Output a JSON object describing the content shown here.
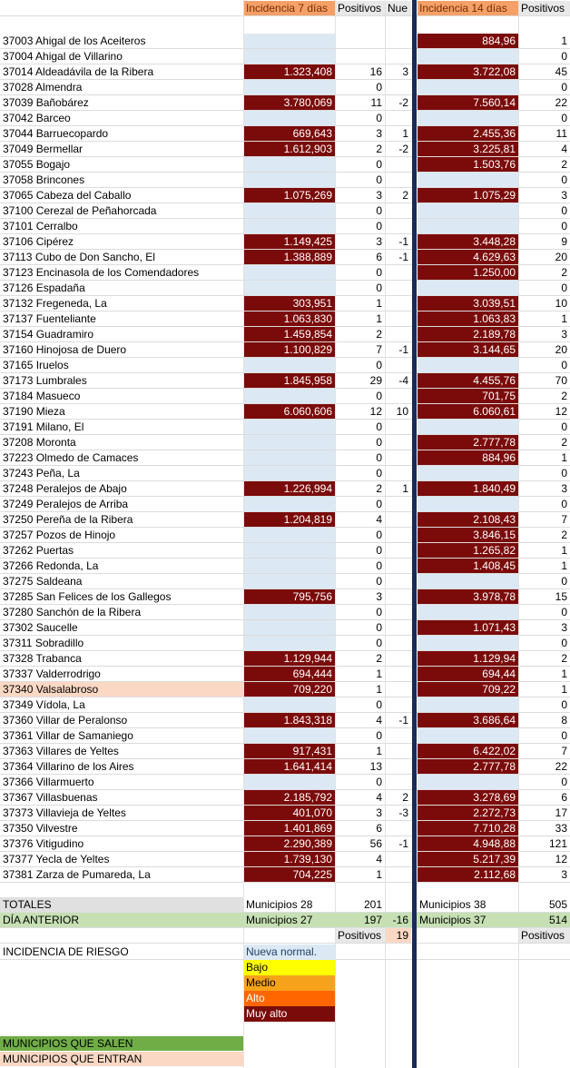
{
  "headers": {
    "inc7": "Incidencia 7 días",
    "pos7": "Positivos",
    "nuevos": "Nue",
    "inc14": "Incidencia 14 días",
    "pos14": "Positivos"
  },
  "rows": [
    {
      "name": "37003 Ahigal de los Aceiteros",
      "i7": "",
      "p7": "",
      "n": "",
      "i14": "884,96",
      "p14": "1"
    },
    {
      "name": "37004 Ahigal de Villarino",
      "i7": "",
      "p7": "",
      "n": "",
      "i14": "",
      "p14": "0"
    },
    {
      "name": "37014 Aldeadávila de la Ribera",
      "i7": "1.323,408",
      "p7": "16",
      "n": "3",
      "i14": "3.722,08",
      "p14": "45"
    },
    {
      "name": "37028 Almendra",
      "i7": "",
      "p7": "0",
      "n": "",
      "i14": "",
      "p14": "0"
    },
    {
      "name": "37039 Bañobárez",
      "i7": "3.780,069",
      "p7": "11",
      "n": "-2",
      "i14": "7.560,14",
      "p14": "22"
    },
    {
      "name": "37042 Barceo",
      "i7": "",
      "p7": "0",
      "n": "",
      "i14": "",
      "p14": "0"
    },
    {
      "name": "37044 Barruecopardo",
      "i7": "669,643",
      "p7": "3",
      "n": "1",
      "i14": "2.455,36",
      "p14": "11"
    },
    {
      "name": "37049 Bermellar",
      "i7": "1.612,903",
      "p7": "2",
      "n": "-2",
      "i14": "3.225,81",
      "p14": "4"
    },
    {
      "name": "37055 Bogajo",
      "i7": "",
      "p7": "0",
      "n": "",
      "i14": "1.503,76",
      "p14": "2"
    },
    {
      "name": "37058 Brincones",
      "i7": "",
      "p7": "0",
      "n": "",
      "i14": "",
      "p14": "0"
    },
    {
      "name": "37065 Cabeza del Caballo",
      "i7": "1.075,269",
      "p7": "3",
      "n": "2",
      "i14": "1.075,29",
      "p14": "3"
    },
    {
      "name": "37100 Cerezal de Peñahorcada",
      "i7": "",
      "p7": "0",
      "n": "",
      "i14": "",
      "p14": "0"
    },
    {
      "name": "37101 Cerralbo",
      "i7": "",
      "p7": "0",
      "n": "",
      "i14": "",
      "p14": "0"
    },
    {
      "name": "37106 Cipérez",
      "i7": "1.149,425",
      "p7": "3",
      "n": "-1",
      "i14": "3.448,28",
      "p14": "9"
    },
    {
      "name": "37113 Cubo de Don Sancho, El",
      "i7": "1.388,889",
      "p7": "6",
      "n": "-1",
      "i14": "4.629,63",
      "p14": "20"
    },
    {
      "name": "37123 Encinasola de los Comendadores",
      "i7": "",
      "p7": "0",
      "n": "",
      "i14": "1.250,00",
      "p14": "2"
    },
    {
      "name": "37126 Espadaña",
      "i7": "",
      "p7": "0",
      "n": "",
      "i14": "",
      "p14": "0"
    },
    {
      "name": "37132 Fregeneda, La",
      "i7": "303,951",
      "p7": "1",
      "n": "",
      "i14": "3.039,51",
      "p14": "10"
    },
    {
      "name": "37137 Fuenteliante",
      "i7": "1.063,830",
      "p7": "1",
      "n": "",
      "i14": "1.063,83",
      "p14": "1"
    },
    {
      "name": "37154 Guadramiro",
      "i7": "1.459,854",
      "p7": "2",
      "n": "",
      "i14": "2.189,78",
      "p14": "3"
    },
    {
      "name": "37160 Hinojosa de Duero",
      "i7": "1.100,829",
      "p7": "7",
      "n": "-1",
      "i14": "3.144,65",
      "p14": "20"
    },
    {
      "name": "37165 Iruelos",
      "i7": "",
      "p7": "0",
      "n": "",
      "i14": "",
      "p14": "0"
    },
    {
      "name": "37173 Lumbrales",
      "i7": "1.845,958",
      "p7": "29",
      "n": "-4",
      "i14": "4.455,76",
      "p14": "70"
    },
    {
      "name": "37184 Masueco",
      "i7": "",
      "p7": "0",
      "n": "",
      "i14": "701,75",
      "p14": "2"
    },
    {
      "name": "37190 Mieza",
      "i7": "6.060,606",
      "p7": "12",
      "n": "10",
      "i14": "6.060,61",
      "p14": "12"
    },
    {
      "name": "37191 Milano, El",
      "i7": "",
      "p7": "0",
      "n": "",
      "i14": "",
      "p14": "0"
    },
    {
      "name": "37208 Moronta",
      "i7": "",
      "p7": "0",
      "n": "",
      "i14": "2.777,78",
      "p14": "2"
    },
    {
      "name": "37223 Olmedo de Camaces",
      "i7": "",
      "p7": "0",
      "n": "",
      "i14": "884,96",
      "p14": "1"
    },
    {
      "name": "37243 Peña, La",
      "i7": "",
      "p7": "0",
      "n": "",
      "i14": "",
      "p14": "0"
    },
    {
      "name": "37248 Peralejos de Abajo",
      "i7": "1.226,994",
      "p7": "2",
      "n": "1",
      "i14": "1.840,49",
      "p14": "3"
    },
    {
      "name": "37249 Peralejos de Arriba",
      "i7": "",
      "p7": "0",
      "n": "",
      "i14": "",
      "p14": "0"
    },
    {
      "name": "37250 Pereña de la Ribera",
      "i7": "1.204,819",
      "p7": "4",
      "n": "",
      "i14": "2.108,43",
      "p14": "7"
    },
    {
      "name": "37257 Pozos de Hinojo",
      "i7": "",
      "p7": "0",
      "n": "",
      "i14": "3.846,15",
      "p14": "2"
    },
    {
      "name": "37262 Puertas",
      "i7": "",
      "p7": "0",
      "n": "",
      "i14": "1.265,82",
      "p14": "1"
    },
    {
      "name": "37266 Redonda, La",
      "i7": "",
      "p7": "0",
      "n": "",
      "i14": "1.408,45",
      "p14": "1"
    },
    {
      "name": "37275 Saldeana",
      "i7": "",
      "p7": "0",
      "n": "",
      "i14": "",
      "p14": "0"
    },
    {
      "name": "37285 San Felices de los Gallegos",
      "i7": "795,756",
      "p7": "3",
      "n": "",
      "i14": "3.978,78",
      "p14": "15"
    },
    {
      "name": "37280 Sanchón de la Ribera",
      "i7": "",
      "p7": "0",
      "n": "",
      "i14": "",
      "p14": "0"
    },
    {
      "name": "37302 Saucelle",
      "i7": "",
      "p7": "0",
      "n": "",
      "i14": "1.071,43",
      "p14": "3"
    },
    {
      "name": "37311 Sobradillo",
      "i7": "",
      "p7": "0",
      "n": "",
      "i14": "",
      "p14": "0"
    },
    {
      "name": "37328 Trabanca",
      "i7": "1.129,944",
      "p7": "2",
      "n": "",
      "i14": "1.129,94",
      "p14": "2"
    },
    {
      "name": "37337 Valderrodrigo",
      "i7": "694,444",
      "p7": "1",
      "n": "",
      "i14": "694,44",
      "p14": "1"
    },
    {
      "name": "37340 Valsalabroso",
      "i7": "709,220",
      "p7": "1",
      "n": "",
      "i14": "709,22",
      "p14": "1",
      "entering": true
    },
    {
      "name": "37349 Vídola, La",
      "i7": "",
      "p7": "0",
      "n": "",
      "i14": "",
      "p14": "0"
    },
    {
      "name": "37360 Villar de Peralonso",
      "i7": "1.843,318",
      "p7": "4",
      "n": "-1",
      "i14": "3.686,64",
      "p14": "8"
    },
    {
      "name": "37361 Villar de Samaniego",
      "i7": "",
      "p7": "0",
      "n": "",
      "i14": "",
      "p14": "0"
    },
    {
      "name": "37363 Villares de Yeltes",
      "i7": "917,431",
      "p7": "1",
      "n": "",
      "i14": "6.422,02",
      "p14": "7"
    },
    {
      "name": "37364 Villarino de los Aires",
      "i7": "1.641,414",
      "p7": "13",
      "n": "",
      "i14": "2.777,78",
      "p14": "22"
    },
    {
      "name": "37366 Villarmuerto",
      "i7": "",
      "p7": "0",
      "n": "",
      "i14": "",
      "p14": "0"
    },
    {
      "name": "37367 Villasbuenas",
      "i7": "2.185,792",
      "p7": "4",
      "n": "2",
      "i14": "3.278,69",
      "p14": "6"
    },
    {
      "name": "37373 Villavieja de Yeltes",
      "i7": "401,070",
      "p7": "3",
      "n": "-3",
      "i14": "2.272,73",
      "p14": "17"
    },
    {
      "name": "37350 Vilvestre",
      "i7": "1.401,869",
      "p7": "6",
      "n": "",
      "i14": "7.710,28",
      "p14": "33"
    },
    {
      "name": "37376 Vitigudino",
      "i7": "2.290,389",
      "p7": "56",
      "n": "-1",
      "i14": "4.948,88",
      "p14": "121"
    },
    {
      "name": "37377 Yecla de Yeltes",
      "i7": "1.739,130",
      "p7": "4",
      "n": "",
      "i14": "5.217,39",
      "p14": "12"
    },
    {
      "name": "37381 Zarza de Pumareda, La",
      "i7": "704,225",
      "p7": "1",
      "n": "",
      "i14": "2.112,68",
      "p14": "3"
    }
  ],
  "totals": {
    "label": "TOTALES",
    "mun7": "Municipios 28",
    "pos7": "201",
    "mun14": "Municipios 38",
    "pos14": "505"
  },
  "previous": {
    "label": "DÍA ANTERIOR",
    "mun7": "Municipios 27",
    "pos7": "197",
    "diff": "-16",
    "mun14": "Municipios 37",
    "pos14": "514"
  },
  "sub": {
    "pos7": "Positivos",
    "val": "19",
    "pos14": "Positivos"
  },
  "legend": {
    "title": "INCIDENCIA DE RIESGO",
    "items": [
      {
        "label": "Nueva normal.",
        "bg": "#dce9f5",
        "fg": "#1f3f66"
      },
      {
        "label": "Bajo",
        "bg": "#ffff00",
        "fg": "#000000"
      },
      {
        "label": "Medio",
        "bg": "#f7a21b",
        "fg": "#000000"
      },
      {
        "label": "Alto",
        "bg": "#ff6600",
        "fg": "#ffffff"
      },
      {
        "label": "Muy alto",
        "bg": "#7b0b0b",
        "fg": "#ffffff"
      }
    ]
  },
  "footer": {
    "leaving": "MUNICIPIOS QUE SALEN",
    "entering": "MUNICIPIOS QUE ENTRAN",
    "leaving_color": "#70ad47",
    "entering_color": "#fbd8c4"
  }
}
